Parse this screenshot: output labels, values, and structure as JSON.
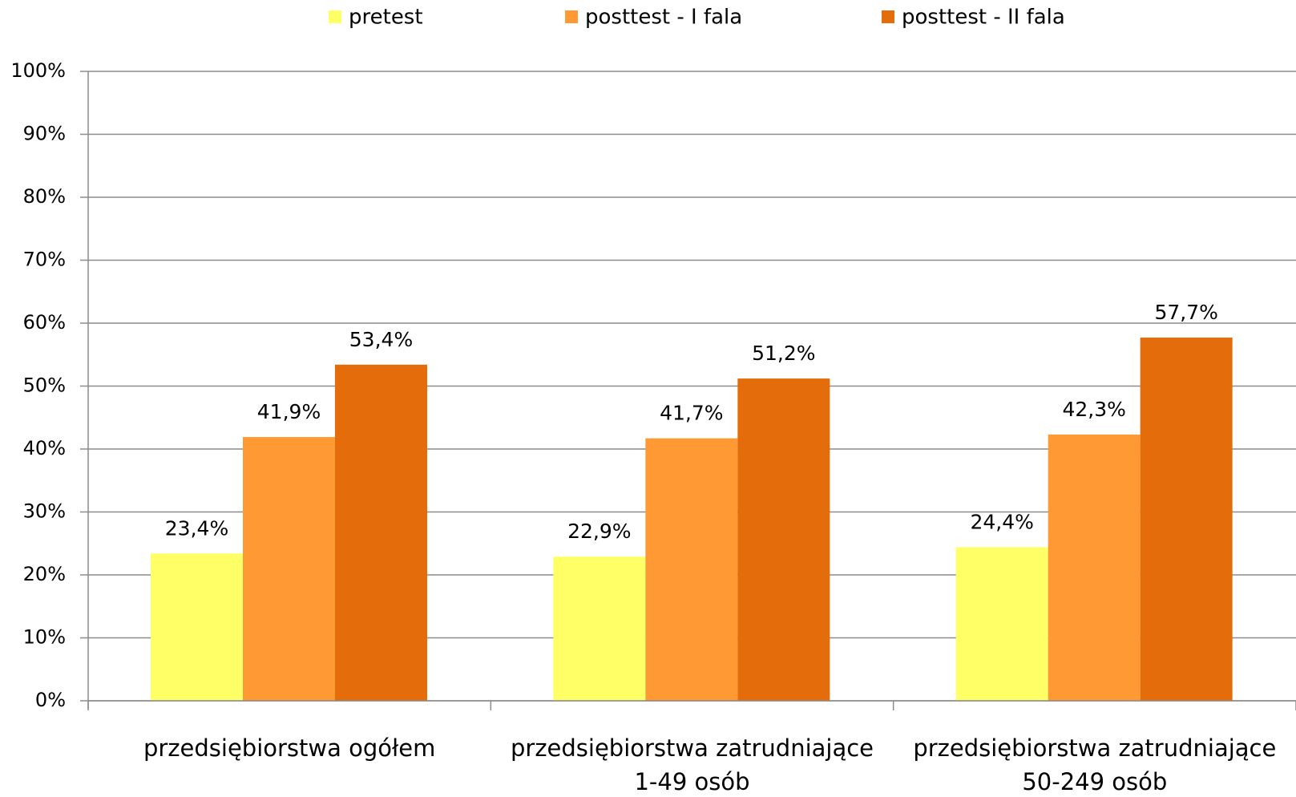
{
  "chart_data": {
    "type": "bar",
    "categories": [
      "przedsiębiorstwa ogółem",
      "przedsiębiorstwa zatrudniające\n1-49 osób",
      "przedsiębiorstwa zatrudniające\n50-249 osób"
    ],
    "series": [
      {
        "name": "pretest",
        "color": "#ffff66",
        "values": [
          23.4,
          22.9,
          24.4
        ],
        "value_labels": [
          "23,4%",
          "22,9%",
          "24,4%"
        ]
      },
      {
        "name": "posttest - I fala",
        "color": "#ff9933",
        "values": [
          41.9,
          41.7,
          42.3
        ],
        "value_labels": [
          "41,9%",
          "41,7%",
          "42,3%"
        ]
      },
      {
        "name": "posttest - II fala",
        "color": "#e46c0a",
        "values": [
          53.4,
          51.2,
          57.7
        ],
        "value_labels": [
          "53,4%",
          "51,2%",
          "57,7%"
        ]
      }
    ],
    "ylim": [
      0,
      100
    ],
    "yticks": [
      {
        "value": 0,
        "label": "0%"
      },
      {
        "value": 10,
        "label": "10%"
      },
      {
        "value": 20,
        "label": "20%"
      },
      {
        "value": 30,
        "label": "30%"
      },
      {
        "value": 40,
        "label": "40%"
      },
      {
        "value": 50,
        "label": "50%"
      },
      {
        "value": 60,
        "label": "60%"
      },
      {
        "value": 70,
        "label": "70%"
      },
      {
        "value": 80,
        "label": "80%"
      },
      {
        "value": 90,
        "label": "90%"
      },
      {
        "value": 100,
        "label": "100%"
      }
    ],
    "grid": true,
    "legend": "top"
  }
}
